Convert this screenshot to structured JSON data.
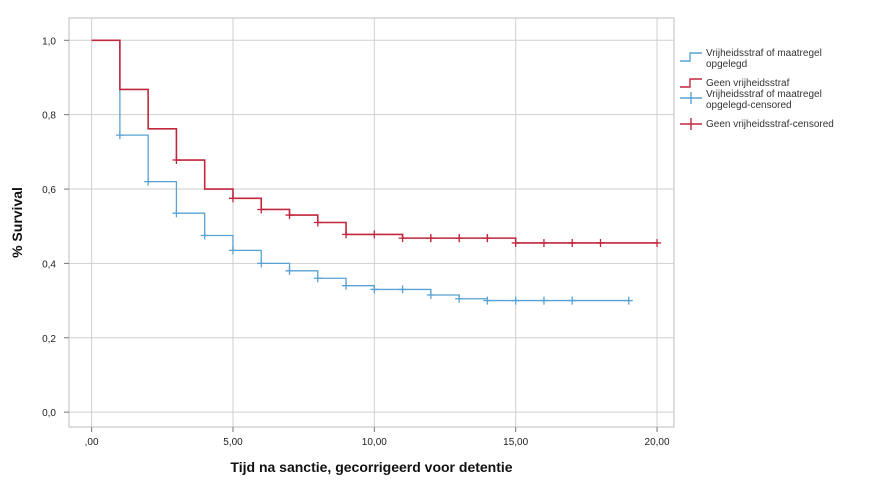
{
  "chart_data": {
    "type": "line",
    "subtype": "kaplan-meier-step",
    "xlabel": "Tijd na sanctie, gecorrigeerd voor detentie",
    "ylabel": "% Survival",
    "xlim": [
      -0.8,
      20.6
    ],
    "ylim": [
      -0.04,
      1.06
    ],
    "xticks": [
      0,
      5,
      10,
      15,
      20
    ],
    "xtick_labels": [
      ",00",
      "5,00",
      "10,00",
      "15,00",
      "20,00"
    ],
    "yticks": [
      0,
      0.2,
      0.4,
      0.6,
      0.8,
      1.0
    ],
    "ytick_labels": [
      "0,0",
      "0,2",
      "0,4",
      "0,6",
      "0,8",
      "1,0"
    ],
    "grid": true,
    "legend_position": "right",
    "series": [
      {
        "name": "Vrijheidsstraf of maatregel opgelegd",
        "color": "#5aa2d4",
        "steps": [
          [
            0,
            1.0
          ],
          [
            1,
            0.745
          ],
          [
            2,
            0.62
          ],
          [
            3,
            0.535
          ],
          [
            4,
            0.475
          ],
          [
            5,
            0.435
          ],
          [
            6,
            0.4
          ],
          [
            7,
            0.38
          ],
          [
            8,
            0.36
          ],
          [
            9,
            0.34
          ],
          [
            10,
            0.33
          ],
          [
            12,
            0.315
          ],
          [
            13,
            0.305
          ],
          [
            14,
            0.3
          ],
          [
            19,
            0.3
          ]
        ],
        "censored": [
          1,
          2,
          3,
          4,
          5,
          6,
          7,
          8,
          9,
          10,
          11,
          12,
          13,
          14,
          15,
          16,
          17,
          19
        ]
      },
      {
        "name": "Geen vrijheidsstraf",
        "color": "#c1273d",
        "steps": [
          [
            0,
            1.0
          ],
          [
            1,
            0.868
          ],
          [
            2,
            0.762
          ],
          [
            3,
            0.678
          ],
          [
            4,
            0.6
          ],
          [
            5,
            0.575
          ],
          [
            6,
            0.545
          ],
          [
            7,
            0.53
          ],
          [
            8,
            0.51
          ],
          [
            9,
            0.478
          ],
          [
            10,
            0.478
          ],
          [
            11,
            0.468
          ],
          [
            15,
            0.455
          ],
          [
            20,
            0.455
          ]
        ],
        "censored": [
          3,
          5,
          6,
          7,
          8,
          9,
          10,
          11,
          12,
          12,
          13,
          13,
          14,
          14,
          15,
          16,
          17,
          18,
          20
        ]
      }
    ],
    "legend": [
      {
        "label_lines": [
          "Vrijheidsstraf of maatregel",
          "opgelegd"
        ],
        "color": "#5aa2d4",
        "marker": "step"
      },
      {
        "label_lines": [
          "Geen vrijheidsstraf"
        ],
        "color": "#c1273d",
        "marker": "step"
      },
      {
        "label_lines": [
          "Vrijheidsstraf of maatregel",
          "opgelegd-censored"
        ],
        "color": "#5aa2d4",
        "marker": "cross"
      },
      {
        "label_lines": [
          "Geen vrijheidsstraf-censored"
        ],
        "color": "#c1273d",
        "marker": "cross"
      }
    ]
  }
}
